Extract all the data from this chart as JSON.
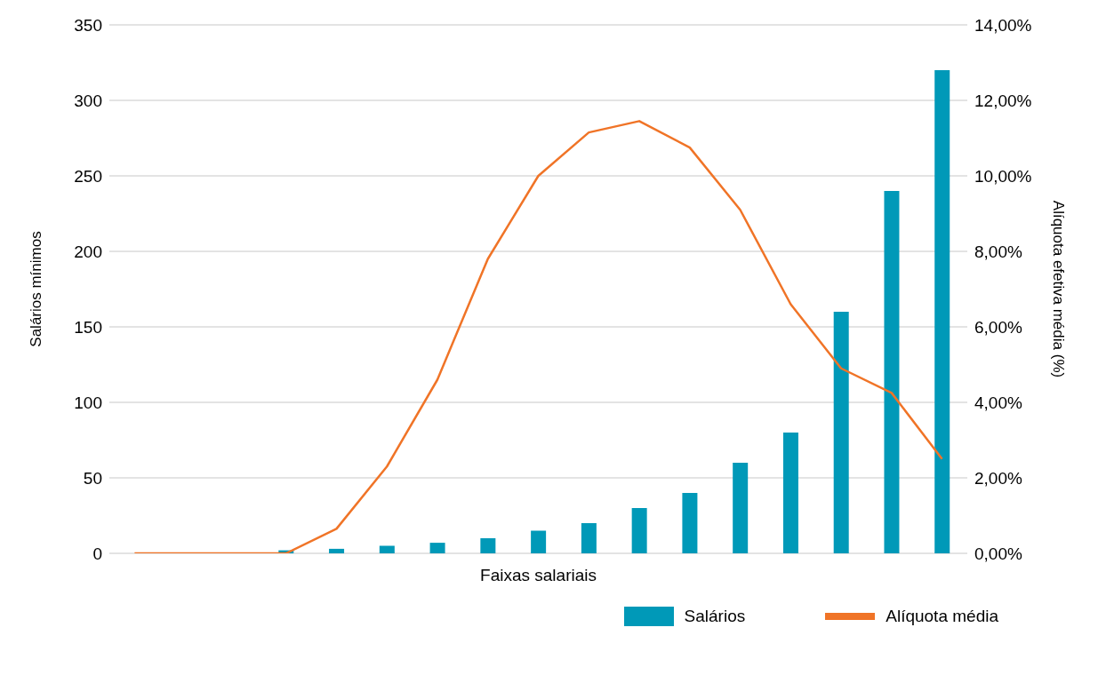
{
  "chart_data": {
    "type": "bar",
    "xlabel": "Faixas salariais",
    "ylabel": "Salários mínimos",
    "y2label": "Alíquota efetiva média (%)",
    "categories": [
      null,
      null,
      null,
      null,
      null,
      null,
      null,
      null,
      null,
      null,
      null,
      null,
      null,
      null,
      null,
      null,
      null
    ],
    "series": [
      {
        "name": "Salários",
        "color": "#0099b8",
        "values": [
          null,
          null,
          null,
          2,
          3,
          5,
          7,
          10,
          15,
          20,
          30,
          40,
          60,
          80,
          160,
          240,
          320
        ]
      },
      {
        "name": "Alíquota média",
        "type": "line",
        "axis": "y2",
        "color": "#f07427",
        "values": [
          0,
          0,
          0,
          0,
          0.65,
          2.3,
          4.6,
          7.8,
          10.0,
          11.15,
          11.45,
          10.75,
          9.1,
          6.6,
          4.9,
          4.25,
          2.5
        ]
      }
    ],
    "ylim": [
      0,
      350
    ],
    "yticks": [
      0,
      50,
      100,
      150,
      200,
      250,
      300,
      350
    ],
    "y2lim": [
      0,
      14
    ],
    "y2ticks": [
      {
        "value": 0,
        "label": "0,00%"
      },
      {
        "value": 2,
        "label": "2,00%"
      },
      {
        "value": 4,
        "label": "4,00%"
      },
      {
        "value": 6,
        "label": "6,00%"
      },
      {
        "value": 8,
        "label": "8,00%"
      },
      {
        "value": 10,
        "label": "10,00%"
      },
      {
        "value": 12,
        "label": "12,00%"
      },
      {
        "value": 14,
        "label": "14,00%"
      }
    ],
    "grid": "y",
    "legend": "bottom right",
    "marker": "none",
    "line_style": "solid"
  }
}
